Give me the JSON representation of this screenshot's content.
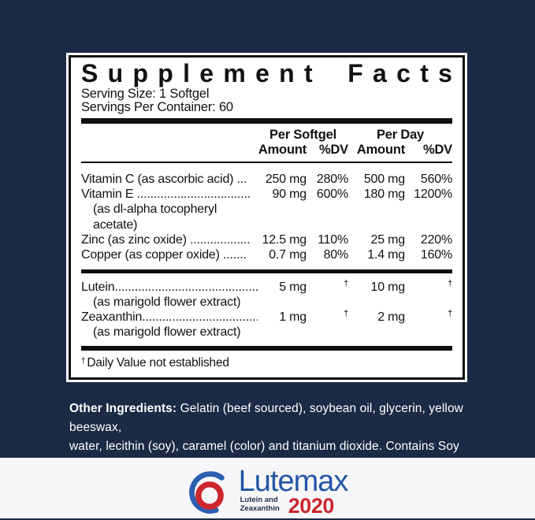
{
  "colors": {
    "background_navy": "#1b2a45",
    "panel_black": "#0f0f0f",
    "bottom_strip": "#f7f7fa",
    "logo_blue": "#2b5fb0",
    "logo_text_blue": "#2456a4",
    "logo_red": "#cc2630",
    "tagline_navy": "#1b2a45"
  },
  "panel": {
    "title": "Supplement Facts",
    "serving_size": "Serving Size: 1 Softgel",
    "servings_per_container": "Servings Per Container: 60",
    "columns": {
      "group1": "Per Softgel",
      "group2": "Per Day",
      "amount": "Amount",
      "dv": "%DV"
    },
    "rows": [
      {
        "name": "Vitamin C (as ascorbic acid) ...",
        "a1": "250 mg",
        "dv1": "280%",
        "a2": "500 mg",
        "dv2": "560%"
      },
      {
        "name": "Vitamin E ..................................",
        "a1": "90 mg",
        "dv1": "600%",
        "a2": "180 mg",
        "dv2": "1200%",
        "sub1": "(as dl-alpha tocopheryl",
        "sub2": "acetate)"
      },
      {
        "name": "Zinc (as zinc oxide) ..................",
        "a1": "12.5 mg",
        "dv1": "110%",
        "a2": "25 mg",
        "dv2": "220%"
      },
      {
        "name": "Copper (as copper oxide) .......",
        "a1": "0.7 mg",
        "dv1": "80%",
        "a2": "1.4 mg",
        "dv2": "160%"
      }
    ],
    "rows2": [
      {
        "name": "Lutein.............................................",
        "a1": "5 mg",
        "dv1": "†",
        "a2": "10 mg",
        "dv2": "†",
        "sub1": "(as marigold flower extract)"
      },
      {
        "name": "Zeaxanthin...................................",
        "a1": "1 mg",
        "dv1": "†",
        "a2": "2 mg",
        "dv2": "†",
        "sub1": "(as marigold flower extract)"
      }
    ],
    "footnote_symbol": "†",
    "footnote": "Daily Value not established"
  },
  "other_ingredients": {
    "label": "Other Ingredients:",
    "line1": " Gelatin (beef sourced), soybean oil, glycerin, yellow beeswax,",
    "line2": "water, lecithin (soy), caramel (color) and titanium dioxide. Contains Soy"
  },
  "logo": {
    "name": "Lutemax",
    "tagline_line1": "Lutein and",
    "tagline_line2": "Zeaxanthin",
    "year": "2020"
  }
}
